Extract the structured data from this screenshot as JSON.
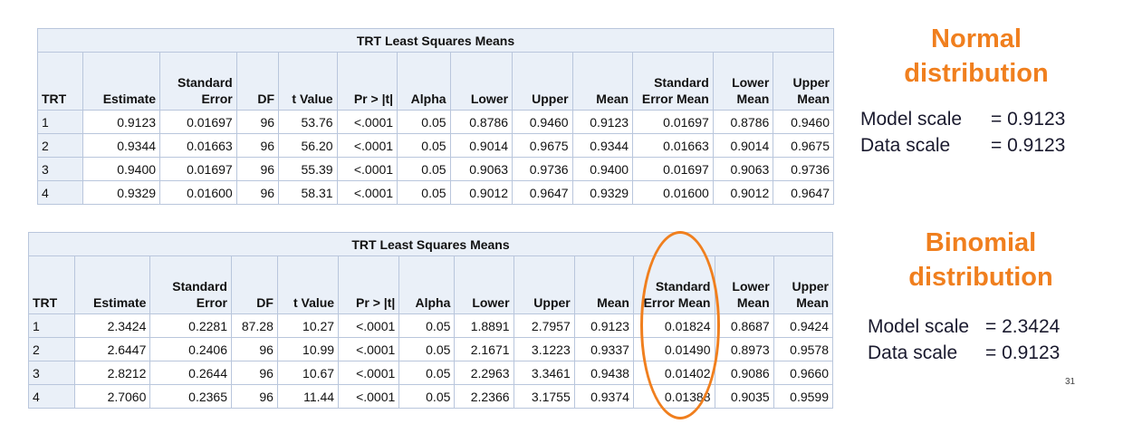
{
  "normal": {
    "title": "TRT Least Squares Means",
    "headers": [
      "TRT",
      "Estimate",
      "Standard Error",
      "DF",
      "t Value",
      "Pr > |t|",
      "Alpha",
      "Lower",
      "Upper",
      "Mean",
      "Standard Error Mean",
      "Lower Mean",
      "Upper Mean"
    ],
    "rows": [
      [
        "1",
        "0.9123",
        "0.01697",
        "96",
        "53.76",
        "<.0001",
        "0.05",
        "0.8786",
        "0.9460",
        "0.9123",
        "0.01697",
        "0.8786",
        "0.9460"
      ],
      [
        "2",
        "0.9344",
        "0.01663",
        "96",
        "56.20",
        "<.0001",
        "0.05",
        "0.9014",
        "0.9675",
        "0.9344",
        "0.01663",
        "0.9014",
        "0.9675"
      ],
      [
        "3",
        "0.9400",
        "0.01697",
        "96",
        "55.39",
        "<.0001",
        "0.05",
        "0.9063",
        "0.9736",
        "0.9400",
        "0.01697",
        "0.9063",
        "0.9736"
      ],
      [
        "4",
        "0.9329",
        "0.01600",
        "96",
        "58.31",
        "<.0001",
        "0.05",
        "0.9012",
        "0.9647",
        "0.9329",
        "0.01600",
        "0.9012",
        "0.9647"
      ]
    ]
  },
  "binomial": {
    "title": "TRT Least Squares Means",
    "headers": [
      "TRT",
      "Estimate",
      "Standard Error",
      "DF",
      "t Value",
      "Pr > |t|",
      "Alpha",
      "Lower",
      "Upper",
      "Mean",
      "Standard Error Mean",
      "Lower Mean",
      "Upper Mean"
    ],
    "rows": [
      [
        "1",
        "2.3424",
        "0.2281",
        "87.28",
        "10.27",
        "<.0001",
        "0.05",
        "1.8891",
        "2.7957",
        "0.9123",
        "0.01824",
        "0.8687",
        "0.9424"
      ],
      [
        "2",
        "2.6447",
        "0.2406",
        "96",
        "10.99",
        "<.0001",
        "0.05",
        "2.1671",
        "3.1223",
        "0.9337",
        "0.01490",
        "0.8973",
        "0.9578"
      ],
      [
        "3",
        "2.8212",
        "0.2644",
        "96",
        "10.67",
        "<.0001",
        "0.05",
        "2.2963",
        "3.3461",
        "0.9438",
        "0.01402",
        "0.9086",
        "0.9660"
      ],
      [
        "4",
        "2.7060",
        "0.2365",
        "96",
        "11.44",
        "<.0001",
        "0.05",
        "2.2366",
        "3.1755",
        "0.9374",
        "0.01388",
        "0.9035",
        "0.9599"
      ]
    ]
  },
  "annotations": {
    "normal_title_line1": "Normal",
    "normal_title_line2": "distribution",
    "normal_model_label": "Model scale",
    "normal_model_value": "=  0.9123",
    "normal_data_label": "Data scale",
    "normal_data_value": "=  0.9123",
    "binomial_title_line1": "Binomial",
    "binomial_title_line2": "distribution",
    "binomial_model_label": "Model scale",
    "binomial_model_value": "=  2.3424",
    "binomial_data_label": "Data scale",
    "binomial_data_value": "=  0.9123",
    "highlight_color": "#f07f1e",
    "page_number": "31"
  }
}
